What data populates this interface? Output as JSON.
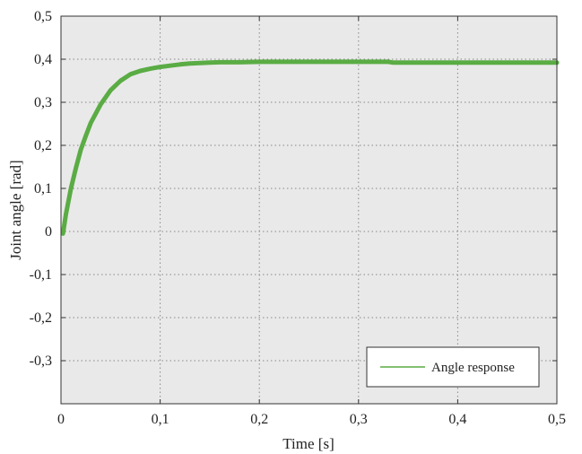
{
  "chart_data": {
    "type": "line",
    "xlabel": "Time [s]",
    "ylabel": "Joint angle  [rad]",
    "xlim": [
      0,
      0.5
    ],
    "ylim": [
      -0.4,
      0.5
    ],
    "xticks": [
      0,
      0.1,
      0.2,
      0.3,
      0.4,
      0.5
    ],
    "xtick_labels": [
      "0",
      "0,1",
      "0,2",
      "0,3",
      "0,4",
      "0,5"
    ],
    "yticks": [
      -0.3,
      -0.2,
      -0.1,
      0,
      0.1,
      0.2,
      0.3,
      0.4,
      0.5
    ],
    "ytick_labels": [
      "-0,3",
      "-0,2",
      "-0,1",
      "0",
      "0,1",
      "0,2",
      "0,3",
      "0,4",
      "0,5"
    ],
    "grid": true,
    "legend_position": "bottom-right",
    "background_color": "#e9e9e9",
    "series": [
      {
        "name": "Angle response",
        "color": "#5aac44",
        "x": [
          0.002,
          0.005,
          0.01,
          0.015,
          0.02,
          0.025,
          0.03,
          0.04,
          0.05,
          0.06,
          0.07,
          0.08,
          0.09,
          0.1,
          0.11,
          0.12,
          0.13,
          0.14,
          0.15,
          0.16,
          0.17,
          0.18,
          0.2,
          0.25,
          0.3,
          0.33,
          0.335,
          0.4,
          0.45,
          0.5
        ],
        "y": [
          -0.005,
          0.04,
          0.1,
          0.147,
          0.19,
          0.222,
          0.252,
          0.295,
          0.328,
          0.35,
          0.365,
          0.373,
          0.378,
          0.382,
          0.385,
          0.388,
          0.39,
          0.391,
          0.392,
          0.393,
          0.393,
          0.393,
          0.394,
          0.394,
          0.394,
          0.394,
          0.392,
          0.392,
          0.392,
          0.392
        ]
      }
    ]
  }
}
